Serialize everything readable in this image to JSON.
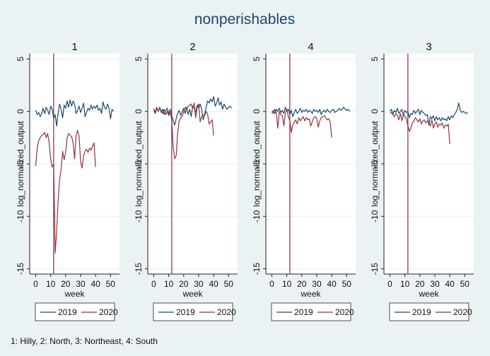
{
  "chart_data": {
    "type": "line",
    "title": "nonperishables",
    "note": "1: Hilly, 2: North, 3: Northeast, 4: South",
    "xlabel": "week",
    "ylabel": "log_normalized_output",
    "xlim": [
      -4,
      56
    ],
    "ylim": [
      -15.5,
      5.5
    ],
    "xticks": [
      0,
      10,
      20,
      30,
      40,
      50
    ],
    "yticks": [
      5,
      0,
      -5,
      -10,
      -15
    ],
    "grid": true,
    "legend": "bottom",
    "colors": {
      "2019": "#1a476f",
      "2020": "#90353b",
      "vline": "#b5163a"
    },
    "panels": [
      {
        "label": "1",
        "vline_x": 12,
        "series": [
          {
            "name": "2019",
            "x": [
              0,
              1,
              2,
              3,
              4,
              5,
              6,
              7,
              8,
              9,
              10,
              11,
              12,
              13,
              14,
              15,
              16,
              17,
              18,
              19,
              20,
              21,
              22,
              23,
              24,
              25,
              26,
              27,
              28,
              29,
              30,
              31,
              32,
              33,
              34,
              35,
              36,
              37,
              38,
              39,
              40,
              41,
              42,
              43,
              44,
              45,
              46,
              47,
              48,
              49,
              50,
              51,
              52
            ],
            "y": [
              0.1,
              -0.3,
              -0.1,
              -0.5,
              -0.2,
              0.3,
              -0.2,
              0.4,
              0.1,
              -0.3,
              0.5,
              0.2,
              -0.7,
              -0.3,
              -1.4,
              -0.2,
              0.7,
              0.2,
              -0.6,
              0.6,
              0.3,
              1.0,
              0.4,
              1.1,
              0.5,
              1.0,
              0.7,
              -0.2,
              0.1,
              0.5,
              -0.1,
              0.3,
              0.8,
              -0.5,
              -0.1,
              0.3,
              0.1,
              0.6,
              0.2,
              0.5,
              0.3,
              0.6,
              0.1,
              0.3,
              -0.2,
              0.9,
              0.4,
              0.2,
              0.7,
              0.3,
              -0.7,
              0.2,
              0.0
            ]
          },
          {
            "name": "2020",
            "x": [
              0,
              1,
              2,
              3,
              4,
              5,
              6,
              7,
              8,
              9,
              10,
              11,
              12,
              13,
              14,
              15,
              16,
              17,
              18,
              19,
              20,
              21,
              22,
              23,
              24,
              25,
              26,
              27,
              28,
              29,
              30,
              31,
              32,
              33,
              34,
              35,
              36,
              37,
              38,
              39,
              40
            ],
            "y": [
              -5.2,
              -3.5,
              -2.8,
              -2.5,
              -2.3,
              -2.2,
              -2.0,
              -2.5,
              -2.1,
              -3.0,
              -4.5,
              -5.3,
              -5.0,
              -13.5,
              -11.5,
              -8.5,
              -6.5,
              -5.5,
              -3.8,
              -4.6,
              -3.9,
              -2.5,
              -2.1,
              -2.3,
              -2.4,
              -3.0,
              -4.5,
              -2.3,
              -1.8,
              -2.4,
              -4.8,
              -5.4,
              -4.2,
              -3.8,
              -3.6,
              -3.9,
              -3.5,
              -3.7,
              -3.3,
              -3.0,
              -5.3
            ]
          }
        ]
      },
      {
        "label": "2",
        "vline_x": 12,
        "series": [
          {
            "name": "2019",
            "x": [
              0,
              1,
              2,
              3,
              4,
              5,
              6,
              7,
              8,
              9,
              10,
              11,
              12,
              13,
              14,
              15,
              16,
              17,
              18,
              19,
              20,
              21,
              22,
              23,
              24,
              25,
              26,
              27,
              28,
              29,
              30,
              31,
              32,
              33,
              34,
              35,
              36,
              37,
              38,
              39,
              40,
              41,
              42,
              43,
              44,
              45,
              46,
              47,
              48,
              49,
              50,
              51,
              52
            ],
            "y": [
              0.1,
              -0.2,
              0.3,
              0.0,
              0.4,
              -0.1,
              0.2,
              -0.3,
              0.1,
              0.3,
              -0.2,
              0.2,
              -0.4,
              -0.9,
              -1.3,
              -0.7,
              -0.2,
              0.1,
              -0.4,
              0.0,
              0.3,
              -0.2,
              0.4,
              -0.3,
              0.2,
              -0.5,
              0.5,
              0.3,
              -0.1,
              0.6,
              0.3,
              0.7,
              0.2,
              -0.8,
              -0.3,
              0.4,
              1.0,
              0.8,
              1.2,
              0.9,
              1.4,
              0.5,
              0.8,
              1.3,
              0.6,
              0.9,
              0.2,
              0.7,
              0.4,
              0.2,
              0.4,
              0.5,
              0.3
            ]
          },
          {
            "name": "2020",
            "x": [
              0,
              1,
              2,
              3,
              4,
              5,
              6,
              7,
              8,
              9,
              10,
              11,
              12,
              13,
              14,
              15,
              16,
              17,
              18,
              19,
              20,
              21,
              22,
              23,
              24,
              25,
              26,
              27,
              28,
              29,
              30,
              31,
              32,
              33,
              34,
              35,
              36,
              37,
              38,
              39,
              40
            ],
            "y": [
              0.3,
              -0.1,
              0.4,
              0.0,
              0.3,
              0.1,
              -0.2,
              0.2,
              -0.3,
              0.0,
              -0.4,
              -0.1,
              -0.8,
              -3.5,
              -4.5,
              -4.2,
              -2.0,
              -0.9,
              -0.6,
              -0.5,
              0.0,
              0.4,
              0.2,
              0.5,
              0.6,
              0.7,
              0.3,
              0.8,
              -0.6,
              0.4,
              0.7,
              -1.0,
              -0.5,
              -0.3,
              -0.4,
              0.0,
              -0.3,
              -1.2,
              -1.0,
              -0.8,
              -2.3
            ]
          }
        ]
      },
      {
        "label": "4",
        "vline_x": 12,
        "series": [
          {
            "name": "2019",
            "x": [
              0,
              1,
              2,
              3,
              4,
              5,
              6,
              7,
              8,
              9,
              10,
              11,
              12,
              13,
              14,
              15,
              16,
              17,
              18,
              19,
              20,
              21,
              22,
              23,
              24,
              25,
              26,
              27,
              28,
              29,
              30,
              31,
              32,
              33,
              34,
              35,
              36,
              37,
              38,
              39,
              40,
              41,
              42,
              43,
              44,
              45,
              46,
              47,
              48,
              49,
              50,
              51,
              52
            ],
            "y": [
              -0.1,
              0.1,
              -0.2,
              0.2,
              0.0,
              0.3,
              -0.1,
              0.1,
              -0.2,
              0.4,
              0.0,
              0.2,
              -0.3,
              0.1,
              -0.5,
              -0.1,
              0.2,
              -0.2,
              0.0,
              0.3,
              -0.1,
              0.1,
              0.0,
              0.2,
              -0.1,
              0.1,
              0.0,
              -0.2,
              0.2,
              0.0,
              0.1,
              -0.1,
              0.2,
              -0.3,
              0.0,
              0.1,
              -0.1,
              0.2,
              0.0,
              -0.1,
              0.1,
              0.2,
              -0.1,
              0.0,
              0.1,
              0.3,
              0.1,
              0.2,
              0.4,
              0.2,
              0.1,
              0.2,
              0.0
            ]
          },
          {
            "name": "2020",
            "x": [
              0,
              1,
              2,
              3,
              4,
              5,
              6,
              7,
              8,
              9,
              10,
              11,
              12,
              13,
              14,
              15,
              16,
              17,
              18,
              19,
              20,
              21,
              22,
              23,
              24,
              25,
              26,
              27,
              28,
              29,
              30,
              31,
              32,
              33,
              34,
              35,
              36,
              37,
              38,
              39,
              40
            ],
            "y": [
              -0.1,
              -0.2,
              0.2,
              -0.1,
              -1.6,
              0.0,
              -0.3,
              -0.4,
              -1.4,
              -0.2,
              0.2,
              -0.5,
              -0.9,
              -2.0,
              -1.3,
              -1.0,
              -0.8,
              -1.2,
              -0.6,
              -0.9,
              -0.7,
              -0.5,
              -0.9,
              -0.6,
              -0.8,
              -0.7,
              -1.4,
              -1.0,
              -0.6,
              -0.5,
              -0.7,
              -1.5,
              -0.9,
              -0.6,
              -0.5,
              -0.4,
              -0.6,
              -0.8,
              -0.7,
              -1.0,
              -2.5
            ]
          }
        ]
      },
      {
        "label": "3",
        "vline_x": 12,
        "series": [
          {
            "name": "2019",
            "x": [
              0,
              1,
              2,
              3,
              4,
              5,
              6,
              7,
              8,
              9,
              10,
              11,
              12,
              13,
              14,
              15,
              16,
              17,
              18,
              19,
              20,
              21,
              22,
              23,
              24,
              25,
              26,
              27,
              28,
              29,
              30,
              31,
              32,
              33,
              34,
              35,
              36,
              37,
              38,
              39,
              40,
              41,
              42,
              43,
              44,
              45,
              46,
              47,
              48,
              49,
              50,
              51,
              52
            ],
            "y": [
              0.0,
              0.2,
              -0.3,
              0.1,
              -0.1,
              0.3,
              -0.2,
              0.0,
              0.2,
              -0.4,
              0.1,
              -0.1,
              0.0,
              -0.6,
              -0.2,
              -0.3,
              0.1,
              -0.2,
              0.0,
              0.2,
              -0.3,
              0.1,
              -0.1,
              -0.2,
              -0.4,
              -0.3,
              -1.3,
              -0.5,
              -0.7,
              -0.4,
              -0.9,
              -0.5,
              -0.8,
              -0.6,
              -0.9,
              -0.6,
              -0.8,
              -0.7,
              -0.9,
              -0.5,
              -0.8,
              -0.4,
              -0.6,
              -0.3,
              -0.1,
              0.2,
              0.8,
              0.1,
              -0.1,
              0.0,
              -0.1,
              -0.2,
              -0.1
            ]
          },
          {
            "name": "2020",
            "x": [
              0,
              1,
              2,
              3,
              4,
              5,
              6,
              7,
              8,
              9,
              10,
              11,
              12,
              13,
              14,
              15,
              16,
              17,
              18,
              19,
              20,
              21,
              22,
              23,
              24,
              25,
              26,
              27,
              28,
              29,
              30,
              31,
              32,
              33,
              34,
              35,
              36,
              37,
              38,
              39,
              40
            ],
            "y": [
              -0.2,
              -0.1,
              -0.3,
              -0.5,
              -0.2,
              -0.4,
              -0.8,
              -0.2,
              -0.9,
              -0.3,
              -0.5,
              -0.7,
              -1.4,
              -1.9,
              -1.6,
              -1.1,
              -0.9,
              -0.6,
              -0.8,
              -1.0,
              -0.7,
              -1.2,
              -0.9,
              -0.8,
              -1.1,
              -0.9,
              -1.0,
              -1.4,
              -0.8,
              -1.6,
              -1.2,
              -1.0,
              -1.5,
              -1.2,
              -1.3,
              -1.1,
              -1.6,
              -1.3,
              -1.4,
              -1.2,
              -3.1
            ]
          }
        ]
      }
    ]
  }
}
